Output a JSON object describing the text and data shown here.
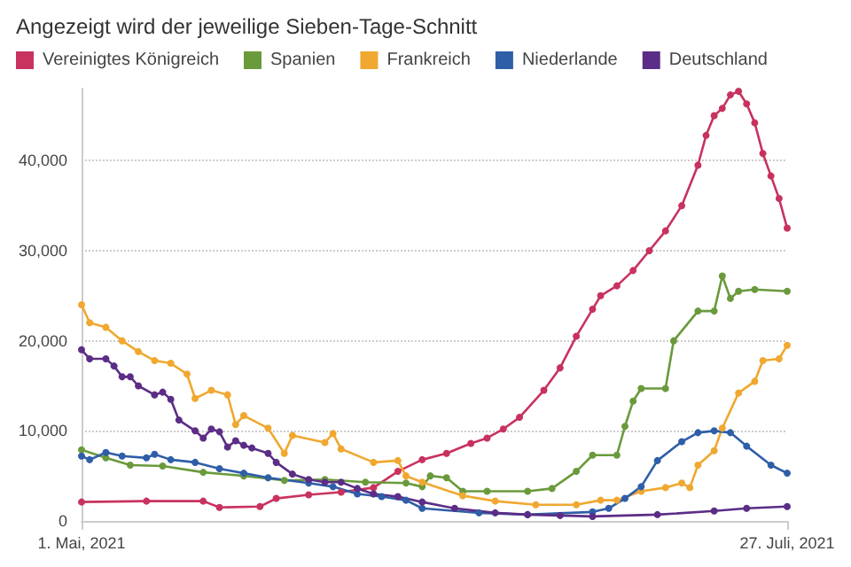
{
  "chart_data": {
    "type": "line",
    "title": "Angezeigt wird der jeweilige Sieben-Tage-Schnitt",
    "xlim": [
      "2021-05-01",
      "2021-07-27"
    ],
    "xticks": [
      {
        "value": "2021-05-01",
        "label": "1. Mai, 2021"
      },
      {
        "value": "2021-07-27",
        "label": "27. Juli, 2021"
      }
    ],
    "ylim": [
      0,
      48000
    ],
    "yticks": [
      0,
      {
        "value": 10000,
        "label": "10,000"
      },
      {
        "value": 20000,
        "label": "20,000"
      },
      {
        "value": 30000,
        "label": "30,000"
      },
      {
        "value": 40000,
        "label": "40,000"
      }
    ],
    "grid": "y",
    "legend": "top left",
    "marker": "circle",
    "line_style": "solid",
    "series": [
      {
        "name": "Vereinigtes Königreich",
        "color": "#c8325e",
        "x": [
          "2021-05-01",
          "2021-05-09",
          "2021-05-16",
          "2021-05-18",
          "2021-05-23",
          "2021-05-25",
          "2021-05-29",
          "2021-06-02",
          "2021-06-06",
          "2021-06-09",
          "2021-06-12",
          "2021-06-15",
          "2021-06-18",
          "2021-06-20",
          "2021-06-22",
          "2021-06-24",
          "2021-06-27",
          "2021-06-29",
          "2021-07-01",
          "2021-07-03",
          "2021-07-04",
          "2021-07-06",
          "2021-07-08",
          "2021-07-10",
          "2021-07-12",
          "2021-07-14",
          "2021-07-16",
          "2021-07-17",
          "2021-07-18",
          "2021-07-19",
          "2021-07-20",
          "2021-07-21",
          "2021-07-22",
          "2021-07-23",
          "2021-07-24",
          "2021-07-25",
          "2021-07-26",
          "2021-07-27"
        ],
        "values": [
          2100,
          2200,
          2200,
          1500,
          1600,
          2500,
          2900,
          3200,
          3700,
          5500,
          6800,
          7500,
          8600,
          9200,
          10200,
          11500,
          14500,
          17000,
          20500,
          23500,
          25000,
          26100,
          27800,
          30000,
          32200,
          35000,
          39500,
          42800,
          45000,
          45800,
          47300,
          47700,
          46300,
          44200,
          40800,
          38300,
          35800,
          32500
        ]
      },
      {
        "name": "Spanien",
        "color": "#6a9a3c",
        "x": [
          "2021-05-01",
          "2021-05-04",
          "2021-05-07",
          "2021-05-11",
          "2021-05-16",
          "2021-05-21",
          "2021-05-26",
          "2021-05-31",
          "2021-06-05",
          "2021-06-10",
          "2021-06-12",
          "2021-06-13",
          "2021-06-15",
          "2021-06-17",
          "2021-06-20",
          "2021-06-25",
          "2021-06-28",
          "2021-07-01",
          "2021-07-03",
          "2021-07-06",
          "2021-07-07",
          "2021-07-08",
          "2021-07-09",
          "2021-07-12",
          "2021-07-13",
          "2021-07-16",
          "2021-07-18",
          "2021-07-19",
          "2021-07-20",
          "2021-07-21",
          "2021-07-23",
          "2021-07-27"
        ],
        "values": [
          7900,
          7000,
          6200,
          6100,
          5400,
          5000,
          4500,
          4600,
          4300,
          4200,
          3800,
          5000,
          4800,
          3300,
          3300,
          3300,
          3600,
          5500,
          7300,
          7300,
          10500,
          13300,
          14700,
          14700,
          20000,
          23300,
          23300,
          27200,
          24700,
          25500,
          25700,
          25500
        ]
      },
      {
        "name": "Frankreich",
        "color": "#f0a830",
        "x": [
          "2021-05-01",
          "2021-05-02",
          "2021-05-04",
          "2021-05-06",
          "2021-05-08",
          "2021-05-10",
          "2021-05-12",
          "2021-05-14",
          "2021-05-15",
          "2021-05-17",
          "2021-05-19",
          "2021-05-20",
          "2021-05-21",
          "2021-05-24",
          "2021-05-26",
          "2021-05-27",
          "2021-05-31",
          "2021-06-01",
          "2021-06-02",
          "2021-06-06",
          "2021-06-09",
          "2021-06-10",
          "2021-06-12",
          "2021-06-17",
          "2021-06-21",
          "2021-06-26",
          "2021-07-01",
          "2021-07-04",
          "2021-07-06",
          "2021-07-09",
          "2021-07-12",
          "2021-07-14",
          "2021-07-15",
          "2021-07-16",
          "2021-07-18",
          "2021-07-19",
          "2021-07-21",
          "2021-07-23",
          "2021-07-24",
          "2021-07-26",
          "2021-07-27"
        ],
        "values": [
          24000,
          22000,
          21500,
          20000,
          18800,
          17800,
          17500,
          16300,
          13600,
          14500,
          14000,
          10700,
          11700,
          10300,
          7500,
          9500,
          8700,
          9700,
          8000,
          6500,
          6700,
          5000,
          4300,
          2800,
          2200,
          1800,
          1800,
          2300,
          2300,
          3300,
          3700,
          4200,
          3700,
          6200,
          7800,
          10300,
          14200,
          15500,
          17800,
          18000,
          19500
        ]
      },
      {
        "name": "Niederlande",
        "color": "#2f5ea8",
        "x": [
          "2021-05-01",
          "2021-05-02",
          "2021-05-04",
          "2021-05-06",
          "2021-05-09",
          "2021-05-10",
          "2021-05-12",
          "2021-05-15",
          "2021-05-18",
          "2021-05-21",
          "2021-05-24",
          "2021-05-29",
          "2021-06-01",
          "2021-06-04",
          "2021-06-07",
          "2021-06-10",
          "2021-06-12",
          "2021-06-19",
          "2021-06-25",
          "2021-07-03",
          "2021-07-05",
          "2021-07-07",
          "2021-07-09",
          "2021-07-11",
          "2021-07-14",
          "2021-07-16",
          "2021-07-18",
          "2021-07-20",
          "2021-07-22",
          "2021-07-25",
          "2021-07-27"
        ],
        "values": [
          7200,
          6800,
          7600,
          7200,
          7000,
          7400,
          6800,
          6500,
          5800,
          5300,
          4800,
          4200,
          3800,
          3000,
          2700,
          2300,
          1400,
          900,
          700,
          1000,
          1400,
          2500,
          3800,
          6700,
          8800,
          9800,
          10000,
          9800,
          8300,
          6200,
          5300
        ]
      },
      {
        "name": "Deutschland",
        "color": "#5b2d86",
        "x": [
          "2021-05-01",
          "2021-05-02",
          "2021-05-04",
          "2021-05-05",
          "2021-05-06",
          "2021-05-07",
          "2021-05-08",
          "2021-05-10",
          "2021-05-11",
          "2021-05-12",
          "2021-05-13",
          "2021-05-15",
          "2021-05-16",
          "2021-05-17",
          "2021-05-18",
          "2021-05-19",
          "2021-05-20",
          "2021-05-21",
          "2021-05-22",
          "2021-05-24",
          "2021-05-25",
          "2021-05-27",
          "2021-05-29",
          "2021-05-31",
          "2021-06-02",
          "2021-06-04",
          "2021-06-06",
          "2021-06-09",
          "2021-06-12",
          "2021-06-16",
          "2021-06-21",
          "2021-06-25",
          "2021-06-29",
          "2021-07-03",
          "2021-07-11",
          "2021-07-18",
          "2021-07-22",
          "2021-07-27"
        ],
        "values": [
          19000,
          18000,
          18000,
          17200,
          16000,
          16000,
          15000,
          14000,
          14300,
          13500,
          11200,
          10000,
          9200,
          10200,
          9900,
          8200,
          8900,
          8400,
          8100,
          7500,
          6500,
          5200,
          4600,
          4300,
          4300,
          3600,
          3000,
          2700,
          2100,
          1400,
          900,
          700,
          600,
          500,
          700,
          1100,
          1400,
          1600
        ]
      }
    ]
  }
}
